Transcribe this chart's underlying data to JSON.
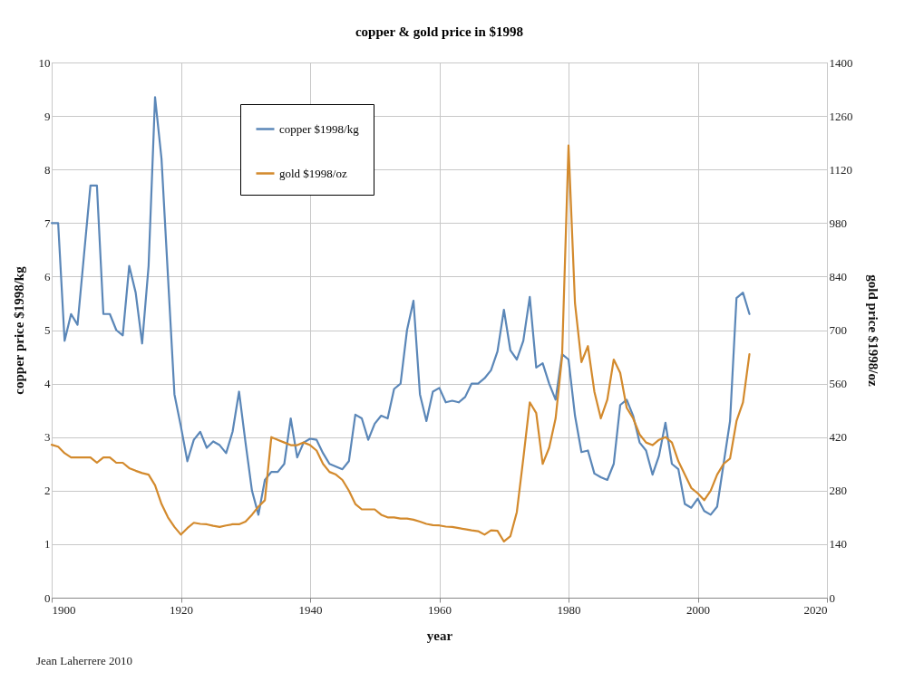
{
  "chart_data": {
    "type": "line",
    "title": "copper & gold price in $1998",
    "xlabel": "year",
    "ylabel": "copper price $1998/kg",
    "y2label": "gold price $1998/oz",
    "x": [
      1900,
      1901,
      1902,
      1903,
      1904,
      1905,
      1906,
      1907,
      1908,
      1909,
      1910,
      1911,
      1912,
      1913,
      1914,
      1915,
      1916,
      1917,
      1918,
      1919,
      1920,
      1921,
      1922,
      1923,
      1924,
      1925,
      1926,
      1927,
      1928,
      1929,
      1930,
      1931,
      1932,
      1933,
      1934,
      1935,
      1936,
      1937,
      1938,
      1939,
      1940,
      1941,
      1942,
      1943,
      1944,
      1945,
      1946,
      1947,
      1948,
      1949,
      1950,
      1951,
      1952,
      1953,
      1954,
      1955,
      1956,
      1957,
      1958,
      1959,
      1960,
      1961,
      1962,
      1963,
      1964,
      1965,
      1966,
      1967,
      1968,
      1969,
      1970,
      1971,
      1972,
      1973,
      1974,
      1975,
      1976,
      1977,
      1978,
      1979,
      1980,
      1981,
      1982,
      1983,
      1984,
      1985,
      1986,
      1987,
      1988,
      1989,
      1990,
      1991,
      1992,
      1993,
      1994,
      1995,
      1996,
      1997,
      1998,
      1999,
      2000,
      2001,
      2002,
      2003,
      2004,
      2005,
      2006,
      2007,
      2008
    ],
    "series": [
      {
        "name": "copper $1998/kg",
        "color": "#5b87b8",
        "values": [
          7.0,
          7.0,
          4.8,
          5.3,
          5.1,
          6.4,
          7.7,
          7.7,
          5.3,
          5.3,
          5.0,
          4.9,
          6.2,
          5.7,
          4.75,
          6.2,
          9.35,
          8.2,
          6.0,
          3.8,
          3.2,
          2.55,
          2.95,
          3.1,
          2.8,
          2.92,
          2.85,
          2.7,
          3.1,
          3.85,
          2.9,
          2.0,
          1.55,
          2.2,
          2.35,
          2.35,
          2.5,
          3.35,
          2.62,
          2.9,
          2.97,
          2.95,
          2.7,
          2.5,
          2.45,
          2.4,
          2.55,
          3.42,
          3.35,
          2.95,
          3.25,
          3.4,
          3.35,
          3.9,
          4.0,
          5.0,
          5.55,
          3.8,
          3.3,
          3.85,
          3.92,
          3.65,
          3.68,
          3.65,
          3.75,
          4.0,
          4.0,
          4.1,
          4.25,
          4.6,
          5.38,
          4.62,
          4.45,
          4.8,
          5.62,
          4.3,
          4.38,
          4.0,
          3.7,
          4.55,
          4.45,
          3.4,
          2.72,
          2.75,
          2.32,
          2.25,
          2.2,
          2.5,
          3.6,
          3.7,
          3.4,
          2.9,
          2.75,
          2.3,
          2.65,
          3.27,
          2.5,
          2.4,
          1.75,
          1.68,
          1.85,
          1.62,
          1.55,
          1.7,
          2.5,
          3.3,
          5.6,
          5.7,
          5.3
        ]
      },
      {
        "name": "gold $1998/oz",
        "color": "#d38a2d",
        "axis": "y2",
        "values": [
          400,
          395,
          378,
          367,
          367,
          367,
          367,
          353,
          367,
          367,
          353,
          353,
          339,
          332,
          326,
          322,
          294,
          245,
          210,
          185,
          165,
          182,
          196,
          193,
          192,
          188,
          185,
          189,
          192,
          192,
          199,
          217,
          238,
          255,
          420,
          413,
          406,
          399,
          399,
          406,
          399,
          385,
          350,
          329,
          322,
          308,
          280,
          245,
          231,
          231,
          231,
          217,
          210,
          210,
          207,
          207,
          204,
          199,
          193,
          190,
          189,
          186,
          185,
          182,
          179,
          176,
          174,
          165,
          176,
          175,
          147,
          161,
          224,
          364,
          511,
          483,
          350,
          392,
          469,
          630,
          1183,
          770,
          616,
          658,
          539,
          469,
          518,
          623,
          588,
          497,
          469,
          427,
          406,
          399,
          413,
          420,
          406,
          357,
          322,
          287,
          273,
          255,
          280,
          322,
          350,
          364,
          462,
          511,
          637
        ]
      }
    ],
    "xlim": [
      1900,
      2020
    ],
    "xticks": [
      1900,
      1920,
      1940,
      1960,
      1980,
      2000,
      2020
    ],
    "ylim": [
      0,
      10
    ],
    "yticks": [
      0,
      1,
      2,
      3,
      4,
      5,
      6,
      7,
      8,
      9,
      10
    ],
    "y2lim": [
      0,
      1400
    ],
    "y2ticks": [
      0,
      140,
      280,
      420,
      560,
      700,
      840,
      980,
      1120,
      1260,
      1400
    ],
    "grid": true,
    "legend": "top left",
    "annotations": [
      "Jean Laherrere 2010"
    ]
  }
}
